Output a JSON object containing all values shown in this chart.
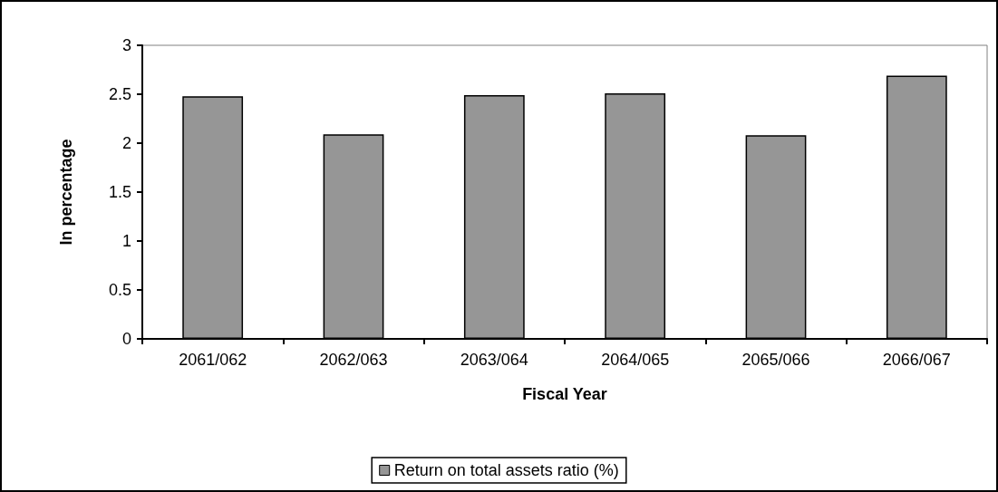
{
  "chart_data": {
    "type": "bar",
    "xlabel": "Fiscal Year",
    "ylabel": "In percentage",
    "categories": [
      "2061/062",
      "2062/063",
      "2063/064",
      "2064/065",
      "2065/066",
      "2066/067"
    ],
    "series": [
      {
        "name": "Return on total assets ratio (%)",
        "color": "#969696",
        "values": [
          2.48,
          2.09,
          2.49,
          2.51,
          2.08,
          2.69
        ]
      }
    ],
    "ylim": [
      0,
      3
    ],
    "yticks": [
      0,
      0.5,
      1,
      1.5,
      2,
      2.5,
      3
    ],
    "grid": false,
    "legend": "bottom"
  }
}
